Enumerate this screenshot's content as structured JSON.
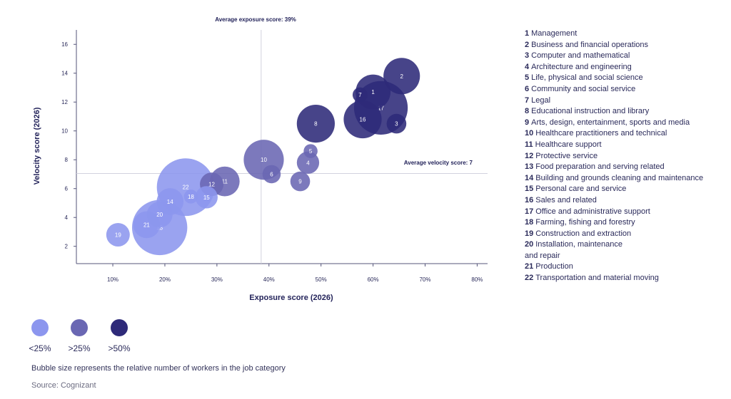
{
  "chart_data": {
    "type": "scatter",
    "xlabel": "Exposure score (2026)",
    "ylabel": "Velocity score (2026)",
    "xlim": [
      3,
      82
    ],
    "ylim": [
      0.8,
      17
    ],
    "x_ticks": [
      10,
      20,
      30,
      40,
      50,
      60,
      70,
      80
    ],
    "x_tick_labels": [
      "10%",
      "20%",
      "30%",
      "40%",
      "50%",
      "60%",
      "70%",
      "80%"
    ],
    "y_ticks": [
      2,
      4,
      6,
      8,
      10,
      12,
      14,
      16
    ],
    "y_tick_labels": [
      "2",
      "4",
      "6",
      "8",
      "10",
      "12",
      "14",
      "16"
    ],
    "avg_exposure": {
      "value": 38.5,
      "label": "Average exposure score: 39%"
    },
    "avg_velocity": {
      "value": 7.05,
      "label": "Average velocity score: 7"
    },
    "colors": {
      "lt25": "#8c96ee",
      "gt25": "#6a67b3",
      "gt50": "#2e2a79"
    },
    "points": [
      {
        "id": "1",
        "x": 60,
        "y": 12.7,
        "size": 2.2,
        "group": "gt50"
      },
      {
        "id": "2",
        "x": 65.5,
        "y": 13.8,
        "size": 2.4,
        "group": "gt50"
      },
      {
        "id": "3",
        "x": 64.5,
        "y": 10.5,
        "size": 0.7,
        "group": "gt50"
      },
      {
        "id": "4",
        "x": 47.5,
        "y": 7.8,
        "size": 0.9,
        "group": "gt25"
      },
      {
        "id": "5",
        "x": 48,
        "y": 8.6,
        "size": 0.35,
        "group": "gt25"
      },
      {
        "id": "6",
        "x": 40.5,
        "y": 7.0,
        "size": 0.6,
        "group": "gt25"
      },
      {
        "id": "7",
        "x": 57.5,
        "y": 12.5,
        "size": 0.4,
        "group": "gt50"
      },
      {
        "id": "8",
        "x": 49,
        "y": 10.5,
        "size": 2.6,
        "group": "gt50"
      },
      {
        "id": "9",
        "x": 46,
        "y": 6.5,
        "size": 0.7,
        "group": "gt25"
      },
      {
        "id": "10",
        "x": 39,
        "y": 8.0,
        "size": 2.9,
        "group": "gt25"
      },
      {
        "id": "11",
        "x": 31.5,
        "y": 6.5,
        "size": 1.6,
        "group": "gt25"
      },
      {
        "id": "12",
        "x": 29,
        "y": 6.3,
        "size": 1.0,
        "group": "gt25"
      },
      {
        "id": "13",
        "x": 19,
        "y": 3.3,
        "size": 5.5,
        "group": "lt25"
      },
      {
        "id": "14",
        "x": 21,
        "y": 5.1,
        "size": 1.3,
        "group": "lt25"
      },
      {
        "id": "15",
        "x": 28,
        "y": 5.4,
        "size": 0.9,
        "group": "lt25"
      },
      {
        "id": "16",
        "x": 58,
        "y": 10.8,
        "size": 2.6,
        "group": "gt50"
      },
      {
        "id": "17",
        "x": 61.5,
        "y": 11.6,
        "size": 5.2,
        "group": "gt50"
      },
      {
        "id": "18",
        "x": 25,
        "y": 5.45,
        "size": 0.35,
        "group": "lt25"
      },
      {
        "id": "19",
        "x": 11,
        "y": 2.8,
        "size": 1.0,
        "group": "lt25"
      },
      {
        "id": "20",
        "x": 19,
        "y": 4.2,
        "size": 1.2,
        "group": "lt25"
      },
      {
        "id": "21",
        "x": 16.5,
        "y": 3.5,
        "size": 1.3,
        "group": "lt25"
      },
      {
        "id": "22",
        "x": 24,
        "y": 6.1,
        "size": 6.0,
        "group": "lt25"
      }
    ]
  },
  "legend_items": [
    {
      "num": "1",
      "label": "Management"
    },
    {
      "num": "2",
      "label": "Business and financial operations"
    },
    {
      "num": "3",
      "label": "Computer and mathematical"
    },
    {
      "num": "4",
      "label": "Architecture and engineering"
    },
    {
      "num": "5",
      "label": "Life, physical and social science"
    },
    {
      "num": "6",
      "label": "Community and social service"
    },
    {
      "num": "7",
      "label": "Legal"
    },
    {
      "num": "8",
      "label": "Educational instruction and library"
    },
    {
      "num": "9",
      "label": "Arts, design, entertainment, sports and media"
    },
    {
      "num": "10",
      "label": "Healthcare practitioners and technical"
    },
    {
      "num": "11",
      "label": "Healthcare support"
    },
    {
      "num": "12",
      "label": "Protective service"
    },
    {
      "num": "13",
      "label": "Food preparation and serving related"
    },
    {
      "num": "14",
      "label": "Building and grounds cleaning and maintenance"
    },
    {
      "num": "15",
      "label": "Personal care and service"
    },
    {
      "num": "16",
      "label": "Sales and related"
    },
    {
      "num": "17",
      "label": "Office and administrative support"
    },
    {
      "num": "18",
      "label": "Farming, fishing and forestry"
    },
    {
      "num": "19",
      "label": "Construction and extraction"
    },
    {
      "num": "20",
      "label": "Installation, maintenance"
    },
    {
      "num": "",
      "label": "and repair"
    },
    {
      "num": "21",
      "label": "Production"
    },
    {
      "num": "22",
      "label": "Transportation and material moving"
    }
  ],
  "size_key": [
    {
      "label": "<25%",
      "color": "#8c96ee"
    },
    {
      "label": ">25%",
      "color": "#6a67b3"
    },
    {
      "label": ">50%",
      "color": "#2e2a79"
    }
  ],
  "note": "Bubble size represents the relative number of workers in the job category",
  "source": "Source: Cognizant"
}
